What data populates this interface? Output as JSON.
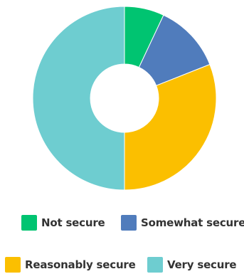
{
  "chart_data": {
    "type": "pie",
    "title": "",
    "legend_position": "bottom",
    "slices": [
      {
        "label": "Not secure",
        "value": 7,
        "color": "#00c471"
      },
      {
        "label": "Somewhat secure",
        "value": 12,
        "color": "#507cbc"
      },
      {
        "label": "Reasonably secure",
        "value": 31,
        "color": "#fbbf00"
      },
      {
        "label": "Very secure",
        "value": 50,
        "color": "#6ecdd0"
      }
    ]
  }
}
